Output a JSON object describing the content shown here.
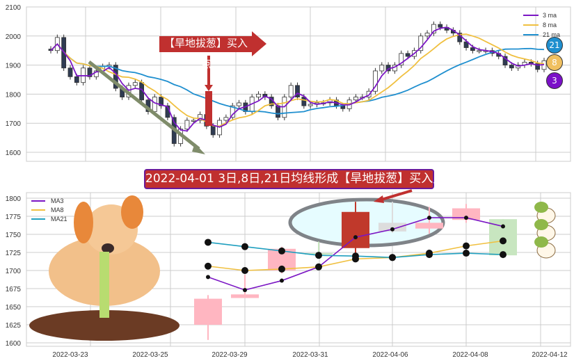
{
  "chart_data": [
    {
      "type": "candlestick",
      "title": "",
      "ylim": [
        1570,
        2100
      ],
      "yticks": [
        1600,
        1700,
        1800,
        1900,
        2000,
        2100
      ],
      "grid": true,
      "legend": {
        "placement": "top-right",
        "entries": [
          "3 ma",
          "8 ma",
          "21 ma"
        ]
      },
      "colors": {
        "ma3": "#7b16c4",
        "ma8": "#f0c040",
        "ma21": "#1f8fcf",
        "up": "#ffffff",
        "down": "#2f3b52"
      },
      "close": [
        1950,
        1995,
        1890,
        1860,
        1840,
        1890,
        1860,
        1880,
        1895,
        1900,
        1820,
        1790,
        1830,
        1840,
        1780,
        1740,
        1790,
        1760,
        1720,
        1630,
        1680,
        1710,
        1710,
        1730,
        1690,
        1660,
        1710,
        1720,
        1760,
        1770,
        1740,
        1790,
        1800,
        1790,
        1760,
        1720,
        1790,
        1830,
        1790,
        1760,
        1765,
        1770,
        1770,
        1780,
        1760,
        1750,
        1780,
        1790,
        1790,
        1810,
        1880,
        1900,
        1880,
        1900,
        1940,
        1930,
        1950,
        2000,
        2010,
        2040,
        2030,
        2020,
        2010,
        1980,
        1960,
        1950,
        1950,
        1950,
        1940,
        1930,
        1900,
        1890,
        1900,
        1910,
        1905,
        1885,
        1915
      ],
      "annotation": "【旱地拔葱】买入点",
      "badges": [
        "21",
        "8",
        "3"
      ]
    },
    {
      "type": "candlestick",
      "title": "2022-04-01 3日,8日,21日均线形成【旱地拔葱】买入点",
      "ylim": [
        1595,
        1805
      ],
      "yticks": [
        1600,
        1625,
        1650,
        1675,
        1700,
        1725,
        1750,
        1775,
        1800
      ],
      "grid": true,
      "xticks": [
        "2022-03-23",
        "2022-03-25",
        "2022-03-29",
        "2022-03-31",
        "2022-04-06",
        "2022-04-08",
        "2022-04-12"
      ],
      "legend": {
        "placement": "top-left",
        "entries": [
          "MA3",
          "MA8",
          "MA21"
        ]
      },
      "ohlc": [
        [
          1625,
          1666,
          1604,
          1661,
          "#ffb6c1"
        ],
        [
          1662,
          1694,
          1662,
          1667,
          "#ffb6c1"
        ],
        [
          1700,
          1733,
          1696,
          1730,
          "#ffb6c1"
        ],
        [
          1724,
          1740,
          1721,
          1722,
          "#c8e6c0"
        ],
        [
          1731,
          1795,
          1717,
          1781,
          "#c0392b"
        ],
        [
          1754,
          1795,
          1752,
          1766,
          "#dddddd"
        ],
        [
          1758,
          1788,
          1751,
          1766,
          "#ffb6c1"
        ],
        [
          1770,
          1792,
          1766,
          1786,
          "#ffb6c1"
        ],
        [
          1771,
          1771,
          1717,
          1721,
          "#c8e6c0"
        ]
      ],
      "series": [
        {
          "name": "MA3",
          "color": "#7b16c4",
          "values": [
            1691,
            1673,
            1686,
            1705,
            1746,
            1757,
            1773,
            1773,
            1761
          ]
        },
        {
          "name": "MA8",
          "color": "#f0c040",
          "values": [
            1706,
            1700,
            1702,
            1705,
            1716,
            1718,
            1724,
            1734,
            1741
          ]
        },
        {
          "name": "MA21",
          "color": "#1f9fbf",
          "values": [
            1739,
            1733,
            1727,
            1721,
            1720,
            1718,
            1722,
            1724,
            1722
          ]
        }
      ]
    }
  ]
}
